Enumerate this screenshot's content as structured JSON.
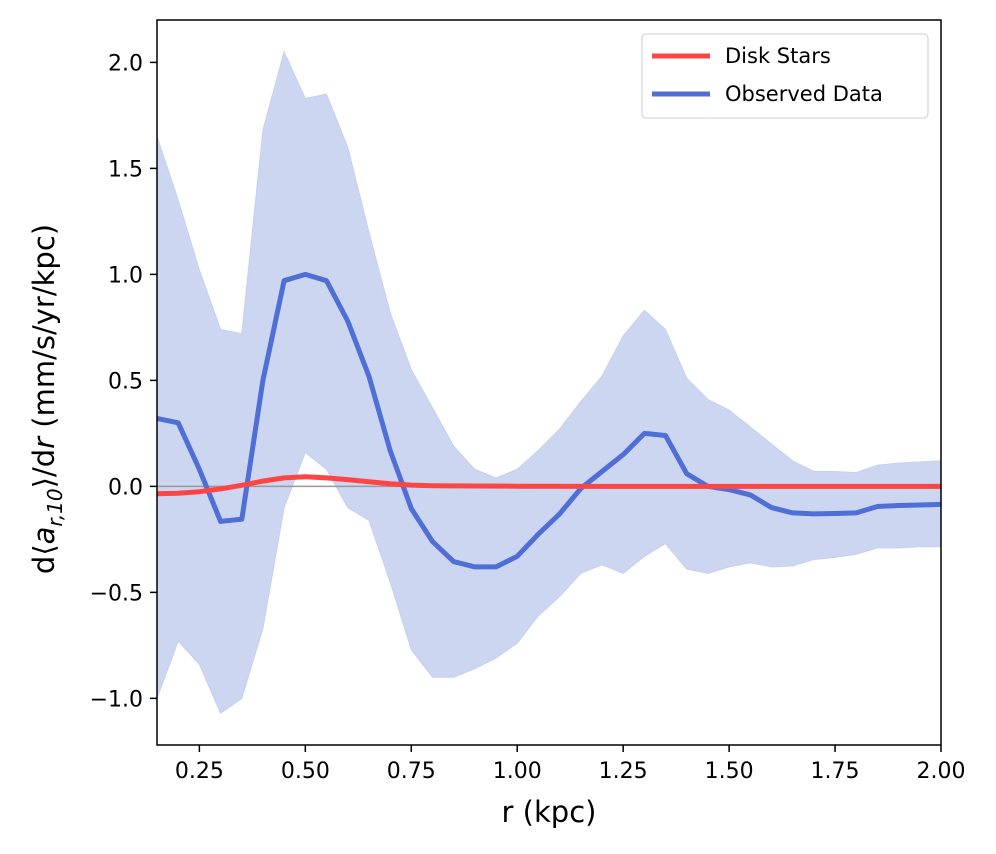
{
  "chart_data": {
    "type": "line",
    "xlabel": "r (kpc)",
    "ylabel": "d⟨a_{r,10}⟩/dr (mm/s/yr/kpc)",
    "ylabel_parts": {
      "pre": "d⟨",
      "var": "a",
      "sub": "r,10",
      "post": "⟩/d",
      "var2": "r",
      "units": " (mm/s/yr/kpc)"
    },
    "xlim": [
      0.15,
      2.0
    ],
    "ylim": [
      -1.22,
      2.2
    ],
    "xticks": [
      0.25,
      0.5,
      0.75,
      1.0,
      1.25,
      1.5,
      1.75,
      2.0
    ],
    "xtick_labels": [
      "0.25",
      "0.50",
      "0.75",
      "1.00",
      "1.25",
      "1.50",
      "1.75",
      "2.00"
    ],
    "yticks": [
      -1.0,
      -0.5,
      0.0,
      0.5,
      1.0,
      1.5,
      2.0
    ],
    "ytick_labels": [
      "−1.0",
      "−0.5",
      "0.0",
      "0.5",
      "1.0",
      "1.5",
      "2.0"
    ],
    "reference_line": {
      "y": 0.0,
      "color": "#999999"
    },
    "legend_placement": "top-right",
    "grid": false,
    "series": [
      {
        "name": "Disk Stars",
        "color": "#ff4444",
        "x": [
          0.15,
          0.2,
          0.25,
          0.3,
          0.35,
          0.4,
          0.45,
          0.5,
          0.55,
          0.6,
          0.65,
          0.7,
          0.75,
          0.8,
          0.9,
          1.0,
          1.2,
          1.5,
          1.75,
          2.0
        ],
        "y": [
          -0.035,
          -0.032,
          -0.025,
          -0.012,
          0.005,
          0.025,
          0.04,
          0.045,
          0.04,
          0.032,
          0.022,
          0.012,
          0.006,
          0.003,
          0.002,
          0.001,
          0.0,
          0.0,
          0.0,
          0.0
        ]
      },
      {
        "name": "Observed Data",
        "color": "#4f6fd6",
        "band_color": "#ccd6f1",
        "x": [
          0.15,
          0.2,
          0.25,
          0.3,
          0.35,
          0.4,
          0.45,
          0.5,
          0.55,
          0.6,
          0.65,
          0.7,
          0.75,
          0.8,
          0.85,
          0.9,
          0.95,
          1.0,
          1.05,
          1.1,
          1.15,
          1.2,
          1.25,
          1.3,
          1.35,
          1.4,
          1.45,
          1.5,
          1.55,
          1.6,
          1.65,
          1.7,
          1.75,
          1.8,
          1.85,
          1.9,
          1.95,
          2.0
        ],
        "y": [
          0.32,
          0.3,
          0.08,
          -0.165,
          -0.155,
          0.5,
          0.97,
          1.0,
          0.97,
          0.78,
          0.52,
          0.17,
          -0.105,
          -0.26,
          -0.355,
          -0.38,
          -0.38,
          -0.33,
          -0.225,
          -0.13,
          -0.01,
          0.07,
          0.15,
          0.25,
          0.24,
          0.06,
          0.0,
          -0.015,
          -0.04,
          -0.1,
          -0.125,
          -0.13,
          -0.128,
          -0.125,
          -0.095,
          -0.09,
          -0.088,
          -0.085
        ],
        "upper": [
          1.65,
          1.35,
          1.02,
          0.74,
          0.72,
          1.68,
          2.05,
          1.83,
          1.85,
          1.6,
          1.2,
          0.82,
          0.55,
          0.37,
          0.19,
          0.08,
          0.04,
          0.08,
          0.17,
          0.27,
          0.4,
          0.52,
          0.71,
          0.83,
          0.74,
          0.51,
          0.41,
          0.36,
          0.28,
          0.2,
          0.12,
          0.07,
          0.07,
          0.065,
          0.1,
          0.11,
          0.115,
          0.12
        ],
        "lower": [
          -1.0,
          -0.73,
          -0.84,
          -1.07,
          -1.0,
          -0.67,
          -0.1,
          0.16,
          0.08,
          -0.1,
          -0.16,
          -0.45,
          -0.77,
          -0.9,
          -0.9,
          -0.86,
          -0.81,
          -0.74,
          -0.61,
          -0.52,
          -0.41,
          -0.37,
          -0.41,
          -0.33,
          -0.27,
          -0.39,
          -0.41,
          -0.38,
          -0.36,
          -0.38,
          -0.375,
          -0.345,
          -0.335,
          -0.32,
          -0.29,
          -0.29,
          -0.285,
          -0.285
        ]
      }
    ]
  }
}
